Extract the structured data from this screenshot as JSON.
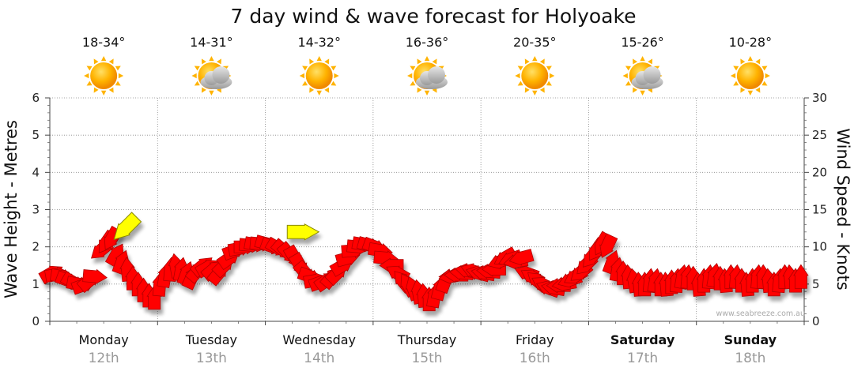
{
  "chart_data": {
    "type": "line",
    "title": "7 day wind & wave forecast for Holyoake",
    "ylabel_left": "Wave Height - Metres",
    "ylabel_right": "Wind Speed - Knots",
    "ylim_left": [
      0,
      6
    ],
    "ylim_right": [
      0,
      30
    ],
    "yticks_left": [
      "0",
      "1",
      "2",
      "3",
      "4",
      "5",
      "6"
    ],
    "yticks_right": [
      "0",
      "5",
      "10",
      "15",
      "20",
      "25",
      "30"
    ],
    "grid": true,
    "watermark": "www.seabreeze.com.au",
    "days": [
      {
        "day": "Monday",
        "date": "12th",
        "temp": "18-34°",
        "icon": "sun-icon",
        "bold": false
      },
      {
        "day": "Tuesday",
        "date": "13th",
        "temp": "14-31°",
        "icon": "partly-cloudy-icon",
        "bold": false
      },
      {
        "day": "Wednesday",
        "date": "14th",
        "temp": "14-32°",
        "icon": "sun-icon",
        "bold": false
      },
      {
        "day": "Thursday",
        "date": "15th",
        "temp": "16-36°",
        "icon": "partly-cloudy-icon",
        "bold": false
      },
      {
        "day": "Friday",
        "date": "16th",
        "temp": "20-35°",
        "icon": "sun-icon",
        "bold": false
      },
      {
        "day": "Saturday",
        "date": "17th",
        "temp": "15-26°",
        "icon": "partly-cloudy-icon",
        "bold": true
      },
      {
        "day": "Sunday",
        "date": "18th",
        "temp": "10-28°",
        "icon": "sun-icon",
        "bold": true
      }
    ],
    "series": [
      {
        "type": "wind-arrows",
        "color": "#ff0000",
        "points": [
          {
            "t": 0.02,
            "knots": 6.5,
            "dir": 60
          },
          {
            "t": 0.07,
            "knots": 6.3,
            "dir": 80
          },
          {
            "t": 0.12,
            "knots": 6.0,
            "dir": 100
          },
          {
            "t": 0.17,
            "knots": 5.5,
            "dir": 110
          },
          {
            "t": 0.22,
            "knots": 5.2,
            "dir": 120
          },
          {
            "t": 0.27,
            "knots": 5.0,
            "dir": 100
          },
          {
            "t": 0.32,
            "knots": 4.9,
            "dir": 70
          },
          {
            "t": 0.37,
            "knots": 5.5,
            "dir": 50
          },
          {
            "t": 0.42,
            "knots": 6.0,
            "dir": 95
          },
          {
            "t": 0.47,
            "knots": 9.5,
            "dir": 230
          },
          {
            "t": 0.52,
            "knots": 10.5,
            "dir": 215
          },
          {
            "t": 0.57,
            "knots": 11.0,
            "dir": 210
          },
          {
            "t": 0.62,
            "knots": 9.0,
            "dir": 30
          },
          {
            "t": 0.67,
            "knots": 8.0,
            "dir": 20
          },
          {
            "t": 0.72,
            "knots": 7.0,
            "dir": 355
          },
          {
            "t": 0.77,
            "knots": 5.8,
            "dir": 0
          },
          {
            "t": 0.82,
            "knots": 5.0,
            "dir": 0
          },
          {
            "t": 0.87,
            "knots": 4.2,
            "dir": 0
          },
          {
            "t": 0.92,
            "knots": 3.5,
            "dir": 0
          },
          {
            "t": 0.97,
            "knots": 3.2,
            "dir": 0
          },
          {
            "t": 1.02,
            "knots": 5.0,
            "dir": 5
          },
          {
            "t": 1.07,
            "knots": 6.2,
            "dir": 10
          },
          {
            "t": 1.12,
            "knots": 7.0,
            "dir": 5
          },
          {
            "t": 1.17,
            "knots": 7.5,
            "dir": 350
          },
          {
            "t": 1.22,
            "knots": 7.0,
            "dir": 10
          },
          {
            "t": 1.27,
            "knots": 6.5,
            "dir": 20
          },
          {
            "t": 1.32,
            "knots": 6.0,
            "dir": 25
          },
          {
            "t": 1.37,
            "knots": 6.8,
            "dir": 40
          },
          {
            "t": 1.42,
            "knots": 7.5,
            "dir": 50
          },
          {
            "t": 1.47,
            "knots": 7.3,
            "dir": 60
          },
          {
            "t": 1.52,
            "knots": 7.0,
            "dir": 50
          },
          {
            "t": 1.57,
            "knots": 6.5,
            "dir": 40
          },
          {
            "t": 1.62,
            "knots": 7.5,
            "dir": 45
          },
          {
            "t": 1.67,
            "knots": 8.5,
            "dir": 55
          },
          {
            "t": 1.72,
            "knots": 9.5,
            "dir": 70
          },
          {
            "t": 1.77,
            "knots": 9.8,
            "dir": 80
          },
          {
            "t": 1.82,
            "knots": 10.0,
            "dir": 90
          },
          {
            "t": 1.87,
            "knots": 10.2,
            "dir": 95
          },
          {
            "t": 1.92,
            "knots": 10.3,
            "dir": 100
          },
          {
            "t": 1.97,
            "knots": 10.4,
            "dir": 95
          },
          {
            "t": 2.02,
            "knots": 10.4,
            "dir": 105
          },
          {
            "t": 2.07,
            "knots": 10.0,
            "dir": 110
          },
          {
            "t": 2.12,
            "knots": 9.8,
            "dir": 120
          },
          {
            "t": 2.17,
            "knots": 9.5,
            "dir": 130
          },
          {
            "t": 2.22,
            "knots": 9.0,
            "dir": 140
          },
          {
            "t": 2.27,
            "knots": 8.5,
            "dir": 150
          },
          {
            "t": 2.32,
            "knots": 7.5,
            "dir": 150
          },
          {
            "t": 2.37,
            "knots": 6.5,
            "dir": 140
          },
          {
            "t": 2.42,
            "knots": 6.0,
            "dir": 110
          },
          {
            "t": 2.47,
            "knots": 5.5,
            "dir": 80
          },
          {
            "t": 2.52,
            "knots": 5.3,
            "dir": 70
          },
          {
            "t": 2.57,
            "knots": 5.5,
            "dir": 55
          },
          {
            "t": 2.62,
            "knots": 6.0,
            "dir": 40
          },
          {
            "t": 2.67,
            "knots": 6.5,
            "dir": 45
          },
          {
            "t": 2.72,
            "knots": 7.5,
            "dir": 60
          },
          {
            "t": 2.77,
            "knots": 8.5,
            "dir": 75
          },
          {
            "t": 2.82,
            "knots": 9.5,
            "dir": 85
          },
          {
            "t": 2.87,
            "knots": 10.0,
            "dir": 95
          },
          {
            "t": 2.92,
            "knots": 10.3,
            "dir": 100
          },
          {
            "t": 2.97,
            "knots": 10.2,
            "dir": 105
          },
          {
            "t": 3.02,
            "knots": 10.0,
            "dir": 110
          },
          {
            "t": 3.07,
            "knots": 9.5,
            "dir": 100
          },
          {
            "t": 3.12,
            "knots": 8.5,
            "dir": 95
          },
          {
            "t": 3.17,
            "knots": 7.5,
            "dir": 270
          },
          {
            "t": 3.22,
            "knots": 6.5,
            "dir": 300
          },
          {
            "t": 3.27,
            "knots": 5.5,
            "dir": 320
          },
          {
            "t": 3.32,
            "knots": 5.0,
            "dir": 330
          },
          {
            "t": 3.37,
            "knots": 4.5,
            "dir": 340
          },
          {
            "t": 3.42,
            "knots": 4.0,
            "dir": 350
          },
          {
            "t": 3.47,
            "knots": 3.5,
            "dir": 355
          },
          {
            "t": 3.52,
            "knots": 3.0,
            "dir": 0
          },
          {
            "t": 3.57,
            "knots": 3.5,
            "dir": 10
          },
          {
            "t": 3.62,
            "knots": 4.5,
            "dir": 15
          },
          {
            "t": 3.67,
            "knots": 5.5,
            "dir": 20
          },
          {
            "t": 3.72,
            "knots": 6.0,
            "dir": 260
          },
          {
            "t": 3.77,
            "knots": 6.2,
            "dir": 270
          },
          {
            "t": 3.82,
            "knots": 6.5,
            "dir": 275
          },
          {
            "t": 3.87,
            "knots": 6.8,
            "dir": 280
          },
          {
            "t": 3.92,
            "knots": 6.8,
            "dir": 290
          },
          {
            "t": 3.97,
            "knots": 6.5,
            "dir": 285
          },
          {
            "t": 4.02,
            "knots": 6.5,
            "dir": 280
          },
          {
            "t": 4.07,
            "knots": 6.7,
            "dir": 275
          },
          {
            "t": 4.12,
            "knots": 7.0,
            "dir": 270
          },
          {
            "t": 4.17,
            "knots": 8.0,
            "dir": 250
          },
          {
            "t": 4.22,
            "knots": 8.5,
            "dir": 240
          },
          {
            "t": 4.27,
            "knots": 8.3,
            "dir": 250
          },
          {
            "t": 4.32,
            "knots": 8.0,
            "dir": 260
          },
          {
            "t": 4.37,
            "knots": 8.5,
            "dir": 255
          },
          {
            "t": 4.42,
            "knots": 6.5,
            "dir": 290
          },
          {
            "t": 4.47,
            "knots": 6.0,
            "dir": 300
          },
          {
            "t": 4.52,
            "knots": 5.5,
            "dir": 310
          },
          {
            "t": 4.57,
            "knots": 5.0,
            "dir": 300
          },
          {
            "t": 4.62,
            "knots": 4.5,
            "dir": 290
          },
          {
            "t": 4.67,
            "knots": 4.5,
            "dir": 280
          },
          {
            "t": 4.72,
            "knots": 4.8,
            "dir": 270
          },
          {
            "t": 4.77,
            "knots": 5.0,
            "dir": 260
          },
          {
            "t": 4.82,
            "knots": 5.5,
            "dir": 250
          },
          {
            "t": 4.87,
            "knots": 6.0,
            "dir": 240
          },
          {
            "t": 4.92,
            "knots": 6.5,
            "dir": 230
          },
          {
            "t": 4.97,
            "knots": 7.5,
            "dir": 225
          },
          {
            "t": 5.02,
            "knots": 8.5,
            "dir": 220
          },
          {
            "t": 5.07,
            "knots": 9.5,
            "dir": 215
          },
          {
            "t": 5.12,
            "knots": 10.3,
            "dir": 210
          },
          {
            "t": 5.17,
            "knots": 10.0,
            "dir": 205
          },
          {
            "t": 5.22,
            "knots": 8.0,
            "dir": 20
          },
          {
            "t": 5.27,
            "knots": 7.0,
            "dir": 10
          },
          {
            "t": 5.32,
            "knots": 6.5,
            "dir": 0
          },
          {
            "t": 5.37,
            "knots": 6.0,
            "dir": 355
          },
          {
            "t": 5.42,
            "knots": 5.5,
            "dir": 350
          },
          {
            "t": 5.47,
            "knots": 5.0,
            "dir": 355
          },
          {
            "t": 5.52,
            "knots": 5.0,
            "dir": 0
          },
          {
            "t": 5.57,
            "knots": 5.5,
            "dir": 5
          },
          {
            "t": 5.62,
            "knots": 5.5,
            "dir": 10
          },
          {
            "t": 5.67,
            "knots": 5.0,
            "dir": 0
          },
          {
            "t": 5.72,
            "knots": 5.0,
            "dir": 355
          },
          {
            "t": 5.77,
            "knots": 5.3,
            "dir": 0
          },
          {
            "t": 5.82,
            "knots": 5.5,
            "dir": 5
          },
          {
            "t": 5.87,
            "knots": 6.0,
            "dir": 10
          },
          {
            "t": 5.92,
            "knots": 6.0,
            "dir": 5
          },
          {
            "t": 5.97,
            "knots": 5.8,
            "dir": 0
          },
          {
            "t": 6.02,
            "knots": 5.0,
            "dir": 355
          },
          {
            "t": 6.07,
            "knots": 5.5,
            "dir": 0
          },
          {
            "t": 6.12,
            "knots": 6.0,
            "dir": 5
          },
          {
            "t": 6.17,
            "knots": 6.2,
            "dir": 10
          },
          {
            "t": 6.22,
            "knots": 5.8,
            "dir": 0
          },
          {
            "t": 6.27,
            "knots": 5.5,
            "dir": 355
          },
          {
            "t": 6.32,
            "knots": 6.0,
            "dir": 0
          },
          {
            "t": 6.37,
            "knots": 6.0,
            "dir": 5
          },
          {
            "t": 6.42,
            "knots": 5.5,
            "dir": 0
          },
          {
            "t": 6.47,
            "knots": 5.0,
            "dir": 355
          },
          {
            "t": 6.52,
            "knots": 5.5,
            "dir": 0
          },
          {
            "t": 6.57,
            "knots": 6.0,
            "dir": 5
          },
          {
            "t": 6.62,
            "knots": 6.0,
            "dir": 0
          },
          {
            "t": 6.67,
            "knots": 5.5,
            "dir": 355
          },
          {
            "t": 6.72,
            "knots": 5.0,
            "dir": 0
          },
          {
            "t": 6.77,
            "knots": 5.5,
            "dir": 5
          },
          {
            "t": 6.82,
            "knots": 6.0,
            "dir": 0
          },
          {
            "t": 6.87,
            "knots": 6.0,
            "dir": 355
          },
          {
            "t": 6.92,
            "knots": 5.5,
            "dir": 0
          },
          {
            "t": 6.97,
            "knots": 6.0,
            "dir": 0
          }
        ]
      },
      {
        "type": "wave-arrows",
        "color": "#ffff00",
        "points": [
          {
            "t": 0.7,
            "metres": 2.5,
            "dir": 225
          },
          {
            "t": 2.35,
            "metres": 2.4,
            "dir": 90
          }
        ]
      }
    ]
  }
}
